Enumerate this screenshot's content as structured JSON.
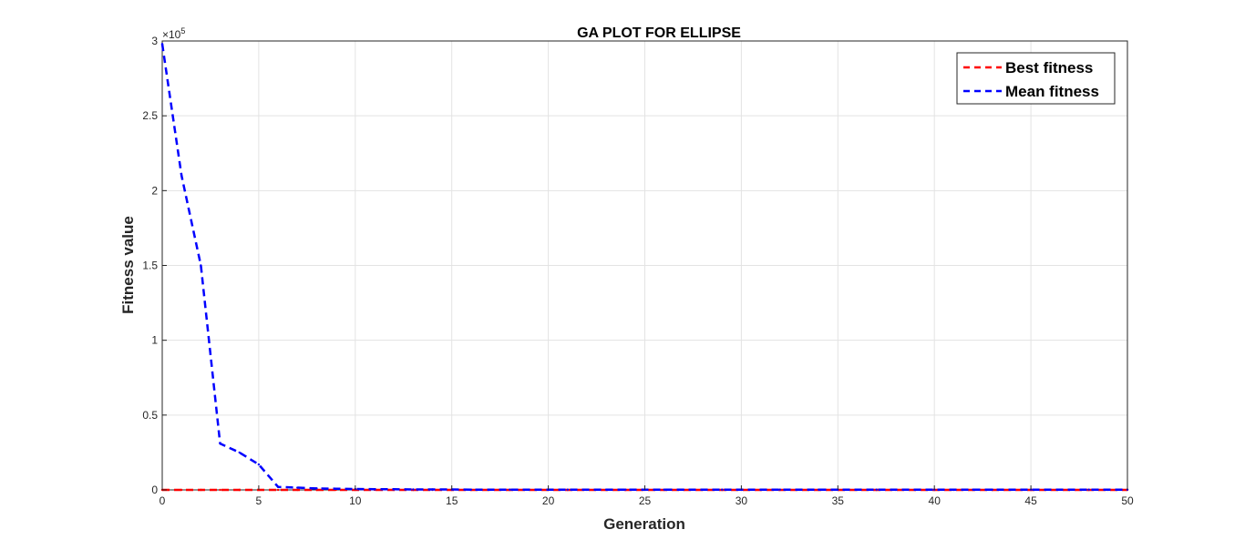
{
  "chart_data": {
    "type": "line",
    "title": "GA PLOT FOR ELLIPSE",
    "xlabel": "Generation",
    "ylabel": "Fitness value",
    "y_exponent_label": "×10",
    "y_exponent_power": "5",
    "xlim": [
      0,
      50
    ],
    "ylim": [
      0,
      3
    ],
    "x_ticks": [
      0,
      5,
      10,
      15,
      20,
      25,
      30,
      35,
      40,
      45,
      50
    ],
    "y_ticks": [
      0,
      0.5,
      1,
      1.5,
      2,
      2.5,
      3
    ],
    "y_tick_labels": [
      "0",
      "0.5",
      "1",
      "1.5",
      "2",
      "2.5",
      "3"
    ],
    "grid": true,
    "legend_position": "top-right",
    "series": [
      {
        "name": "Best fitness",
        "color": "#ff0000",
        "style": "dashed",
        "x": [
          0,
          1,
          2,
          3,
          4,
          5,
          6,
          7,
          8,
          9,
          10,
          11,
          12,
          13,
          14,
          15,
          16,
          17,
          18,
          19,
          20,
          21,
          22,
          23,
          24,
          25,
          26,
          27,
          28,
          29,
          30,
          31,
          32,
          33,
          34,
          35,
          36,
          37,
          38,
          39,
          40,
          41,
          42,
          43,
          44,
          45,
          46,
          47,
          48,
          49,
          50
        ],
        "y": [
          0,
          0,
          0,
          0,
          0,
          0,
          0,
          0,
          0,
          0,
          0,
          0,
          0,
          0,
          0,
          0,
          0,
          0,
          0,
          0,
          0,
          0,
          0,
          0,
          0,
          0,
          0,
          0,
          0,
          0,
          0,
          0,
          0,
          0,
          0,
          0,
          0,
          0,
          0,
          0,
          0,
          0,
          0,
          0,
          0,
          0,
          0,
          0,
          0,
          0,
          0
        ]
      },
      {
        "name": "Mean fitness",
        "color": "#0000ff",
        "style": "dashed",
        "x": [
          0,
          1,
          2,
          3,
          4,
          5,
          6,
          7,
          8,
          9,
          10,
          11,
          12,
          13,
          14,
          15,
          16,
          17,
          18,
          19,
          20,
          21,
          22,
          23,
          24,
          25,
          26,
          27,
          28,
          29,
          30,
          31,
          32,
          33,
          34,
          35,
          36,
          37,
          38,
          39,
          40,
          41,
          42,
          43,
          44,
          45,
          46,
          47,
          48,
          49,
          50
        ],
        "y": [
          2.98,
          2.1,
          1.5,
          0.31,
          0.25,
          0.17,
          0.02,
          0.015,
          0.01,
          0.008,
          0.006,
          0.005,
          0.004,
          0.003,
          0.003,
          0.003,
          0.002,
          0.002,
          0.002,
          0.002,
          0.002,
          0.002,
          0.002,
          0.002,
          0.002,
          0.002,
          0.002,
          0.002,
          0.002,
          0.002,
          0.002,
          0.002,
          0.002,
          0.002,
          0.002,
          0.002,
          0.002,
          0.002,
          0.002,
          0.002,
          0.002,
          0.002,
          0.002,
          0.002,
          0.002,
          0.002,
          0.002,
          0.002,
          0.002,
          0.002,
          0.002
        ]
      }
    ]
  }
}
